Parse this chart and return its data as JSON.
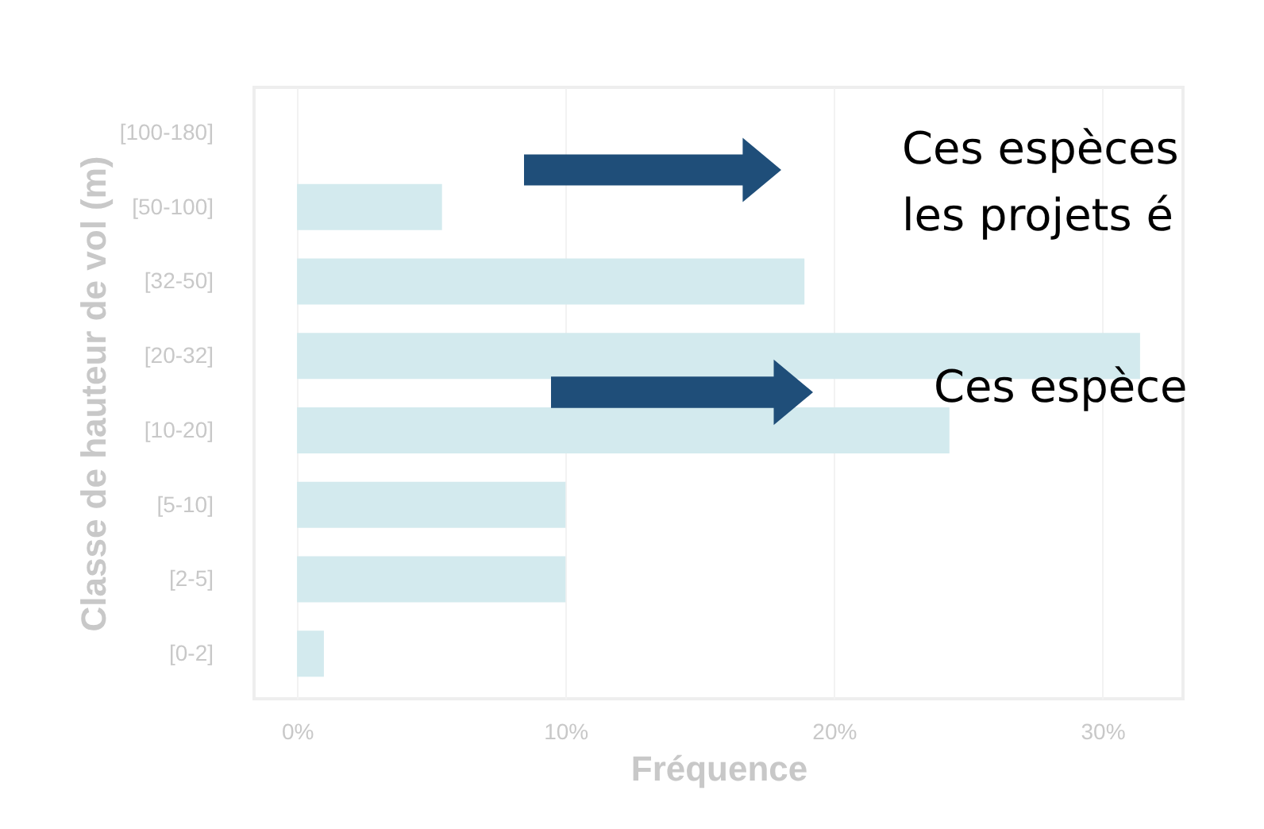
{
  "chart_data": {
    "type": "bar",
    "orientation": "horizontal",
    "categories": [
      "[100-180]",
      "[50-100]",
      "[32-50]",
      "[20-32]",
      "[10-20]",
      "[5-10]",
      "[2-5]",
      "[0-2]"
    ],
    "values": [
      0,
      5.4,
      18.9,
      31.4,
      24.3,
      10,
      10,
      1.0
    ],
    "color": "#d3eaee",
    "xlim": [
      -1.6,
      33
    ],
    "xticks": [
      {
        "value": 0,
        "label": "0%"
      },
      {
        "value": 10,
        "label": "10%"
      },
      {
        "value": 20,
        "label": "20%"
      },
      {
        "value": 30,
        "label": "30%"
      }
    ],
    "xlabel": "Fréquence",
    "ylabel": "Classe de hauteur de vol (m)",
    "grid": "x",
    "annotations": [
      "Ces espèces",
      "les projets é",
      "Ces espèce"
    ]
  }
}
